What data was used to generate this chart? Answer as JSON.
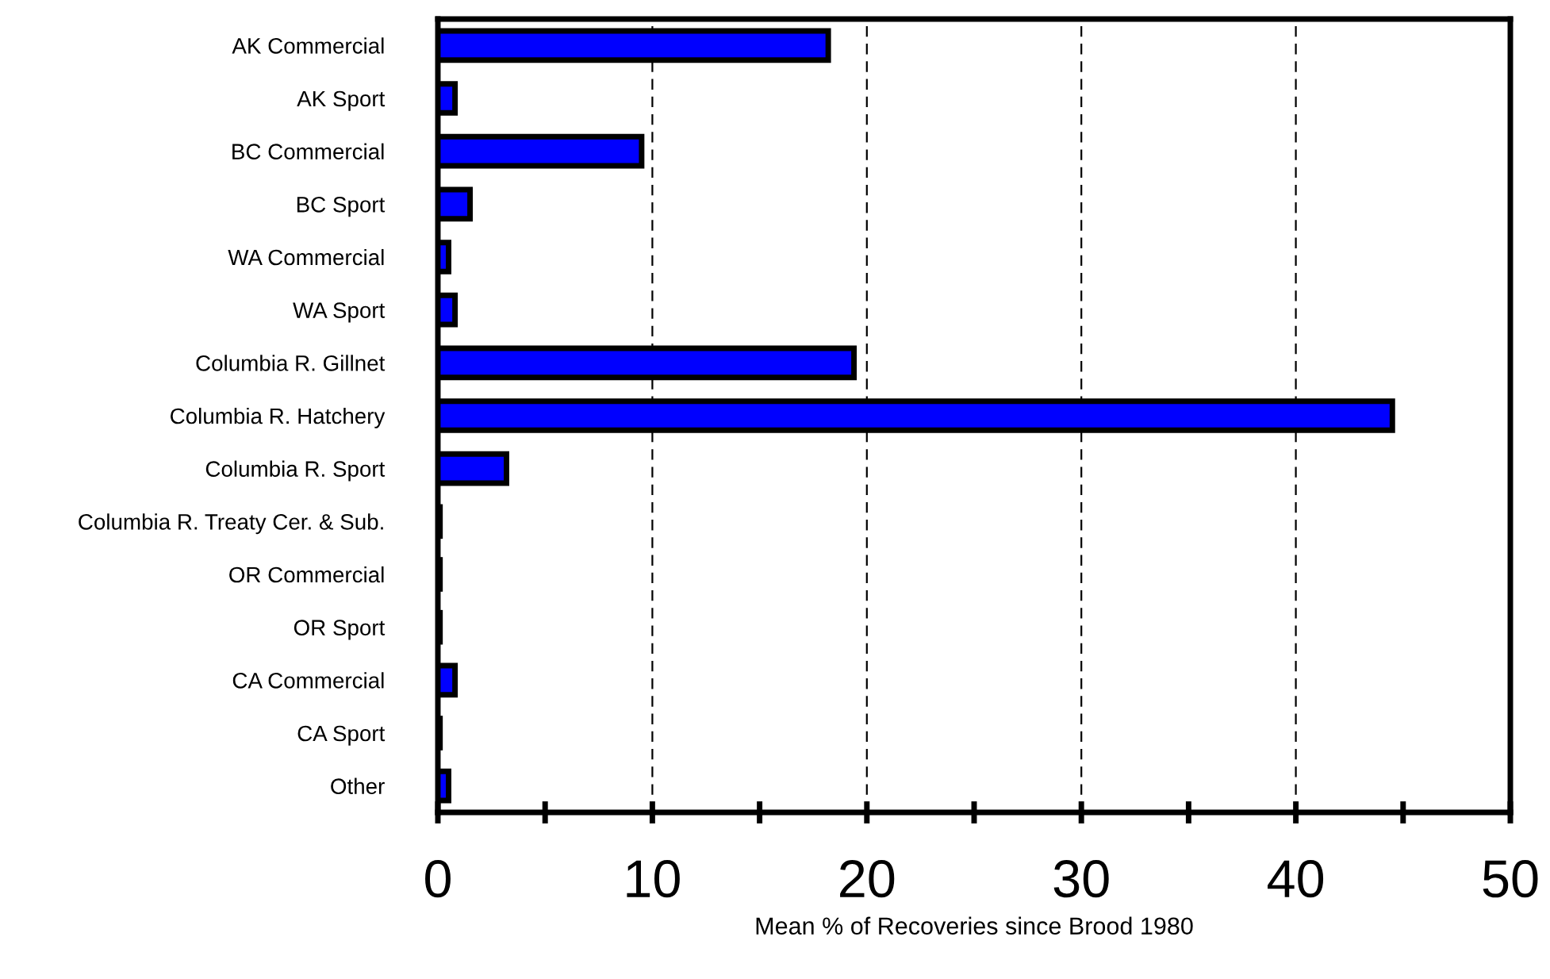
{
  "chart_data": {
    "type": "bar",
    "orientation": "horizontal",
    "categories": [
      "AK Commercial",
      "AK Sport",
      "BC Commercial",
      "BC Sport",
      "WA Commercial",
      "WA Sport",
      "Columbia R. Gillnet",
      "Columbia R. Hatchery",
      "Columbia R. Sport",
      "Columbia R. Treaty Cer. & Sub.",
      "OR Commercial",
      "OR Sport",
      "CA Commercial",
      "CA Sport",
      "Other"
    ],
    "values": [
      18.2,
      0.8,
      9.5,
      1.5,
      0.5,
      0.8,
      19.4,
      44.5,
      3.2,
      0.1,
      0.1,
      0.1,
      0.8,
      0.1,
      0.5
    ],
    "color": "#0000ff",
    "xlabel": "Mean % of Recoveries since Brood 1980",
    "xlim": [
      0,
      50
    ],
    "xticks": [
      0,
      {
        "value": 5,
        "label": null
      },
      10,
      {
        "value": 15,
        "label": null
      },
      20,
      {
        "value": 25,
        "label": null
      },
      30,
      {
        "value": 35,
        "label": null
      },
      40,
      {
        "value": 45,
        "label": null
      },
      50
    ],
    "grid": "x"
  }
}
